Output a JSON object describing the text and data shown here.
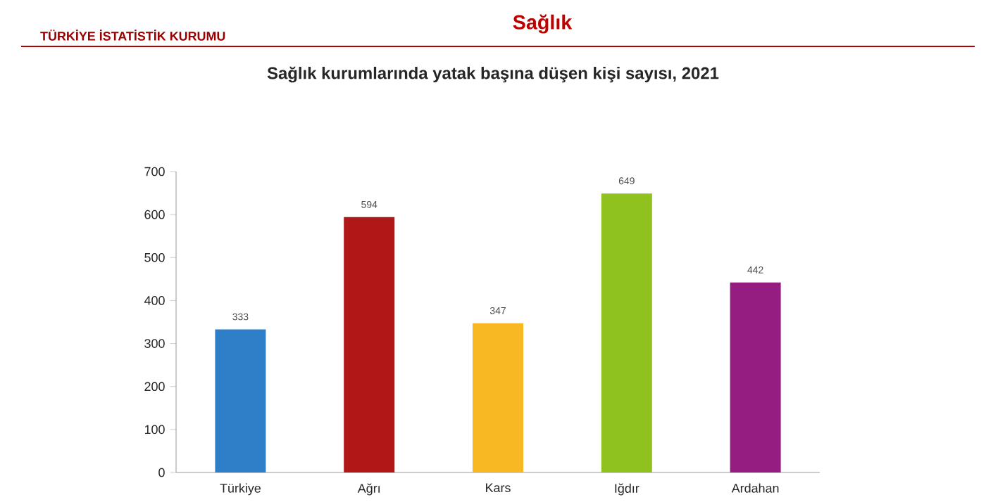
{
  "chart_data": {
    "type": "bar",
    "title": "Sağlık kurumlarında yatak başına düşen kişi sayısı, 2021",
    "annotations": [
      "TÜRKİYE İSTATİSTİK KURUMU",
      "Sağlık"
    ],
    "categories": [
      "Türkiye",
      "Ağrı",
      "Kars",
      "Iğdır",
      "Ardahan"
    ],
    "values": [
      333,
      594,
      347,
      649,
      442
    ],
    "colors": [
      "#2e7fc8",
      "#b01818",
      "#f8b824",
      "#8fc21e",
      "#951c80"
    ],
    "ylim": [
      0,
      700
    ],
    "yticks": [
      0,
      100,
      200,
      300,
      400,
      500,
      600,
      700
    ],
    "data_labels": true
  }
}
